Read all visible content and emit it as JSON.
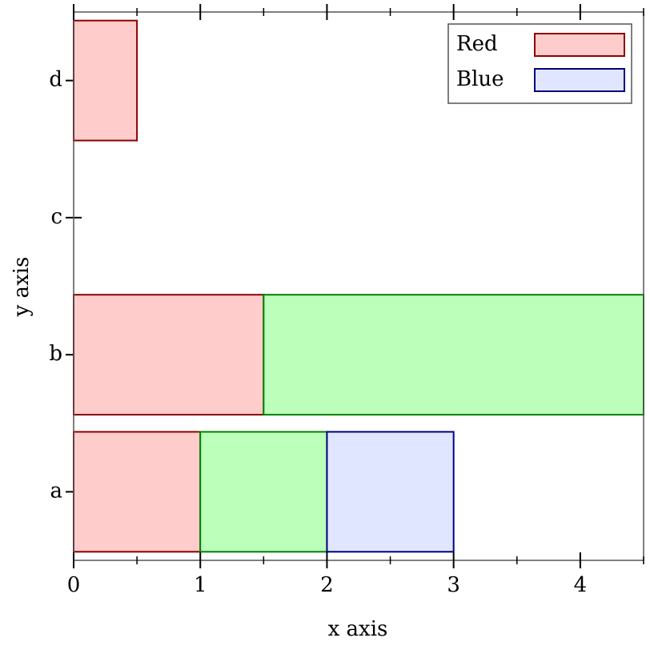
{
  "chart_data": {
    "type": "stacked-hbar",
    "x_label": "x axis",
    "y_label": "y axis",
    "categories": [
      "a",
      "b",
      "c",
      "d"
    ],
    "series": [
      {
        "name": "Red",
        "color": "#ffcccc",
        "stroke": "#8b0000",
        "values": [
          1,
          1.5,
          0,
          0.5
        ]
      },
      {
        "color": "#bbffbb",
        "stroke": "#008000",
        "values": [
          1,
          3,
          0,
          0
        ]
      },
      {
        "name": "Blue",
        "color": "#e0e6ff",
        "stroke": "#000080",
        "values": [
          1,
          0,
          0,
          0
        ]
      }
    ],
    "xlim": [
      0,
      4.5
    ],
    "xticks": [
      0,
      1,
      2,
      3,
      4
    ],
    "xminorticks": [
      0.5,
      1.5,
      2.5,
      3.5,
      4.5
    ],
    "legend": "top-right"
  }
}
